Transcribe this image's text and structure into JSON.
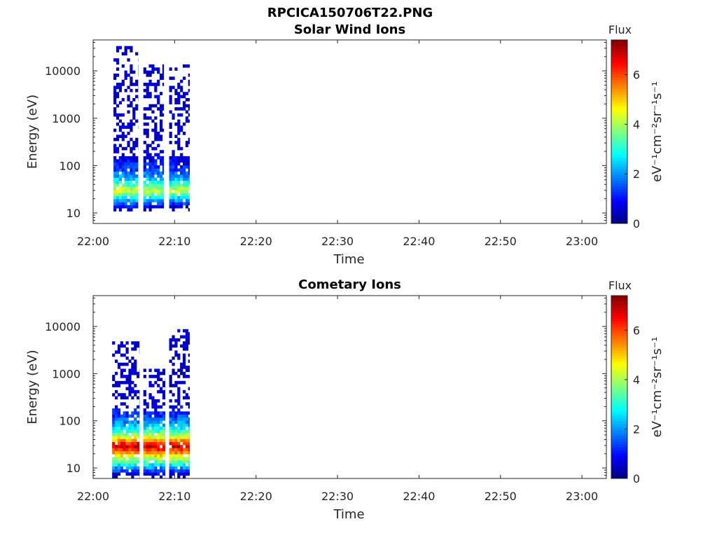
{
  "figure_title": "RPCICA150706T22.PNG",
  "chart_data": [
    {
      "type": "heatmap",
      "title": "Solar Wind Ions",
      "xlabel": "Time",
      "ylabel": "Energy (eV)",
      "y_scale": "log",
      "xlim": [
        "22:00",
        "23:03"
      ],
      "ylim": [
        6,
        45000
      ],
      "x_ticks": [
        "22:00",
        "22:10",
        "22:20",
        "22:30",
        "22:40",
        "22:50",
        "23:00"
      ],
      "y_ticks": [
        "10",
        "100",
        "1000",
        "10000"
      ],
      "grid": false,
      "colorbar": {
        "label": "Flux",
        "unit": "eV⁻¹cm⁻²sr⁻¹s⁻¹",
        "range": [
          0,
          7.4
        ],
        "ticks": [
          "0",
          "2",
          "4",
          "6"
        ],
        "colormap": "jet"
      },
      "bursts": [
        {
          "t_start": "22:02:30",
          "t_end": "22:05:30",
          "peak_energy_eV": 30,
          "peak_flux": 4.5,
          "max_energy_eV": 32000
        },
        {
          "t_start": "22:06:10",
          "t_end": "22:08:40",
          "peak_energy_eV": 30,
          "peak_flux": 4.3,
          "max_energy_eV": 14000
        },
        {
          "t_start": "22:09:20",
          "t_end": "22:11:50",
          "peak_energy_eV": 30,
          "peak_flux": 4.3,
          "max_energy_eV": 14000
        }
      ]
    },
    {
      "type": "heatmap",
      "title": "Cometary Ions",
      "xlabel": "Time",
      "ylabel": "Energy (eV)",
      "y_scale": "log",
      "xlim": [
        "22:00",
        "23:03"
      ],
      "ylim": [
        6,
        45000
      ],
      "x_ticks": [
        "22:00",
        "22:10",
        "22:20",
        "22:30",
        "22:40",
        "22:50",
        "23:00"
      ],
      "y_ticks": [
        "10",
        "100",
        "1000",
        "10000"
      ],
      "grid": false,
      "colorbar": {
        "label": "Flux",
        "unit": "eV⁻¹cm⁻²sr⁻¹s⁻¹",
        "range": [
          0,
          7.4
        ],
        "ticks": [
          "0",
          "2",
          "4",
          "6"
        ],
        "colormap": "jet"
      },
      "bursts": [
        {
          "t_start": "22:02:20",
          "t_end": "22:05:40",
          "peak_energy_eV": 30,
          "peak_flux": 7.0,
          "max_energy_eV": 5000
        },
        {
          "t_start": "22:06:10",
          "t_end": "22:08:50",
          "peak_energy_eV": 30,
          "peak_flux": 7.0,
          "max_energy_eV": 1200
        },
        {
          "t_start": "22:09:20",
          "t_end": "22:11:50",
          "peak_energy_eV": 30,
          "peak_flux": 7.0,
          "max_energy_eV": 9000
        }
      ]
    }
  ]
}
